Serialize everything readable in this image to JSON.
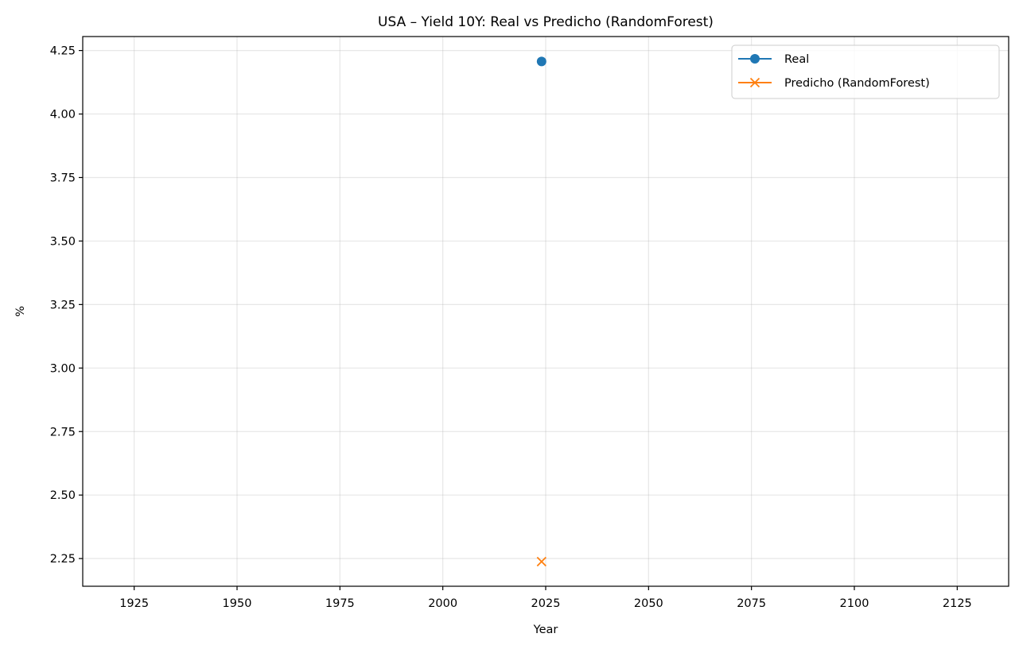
{
  "chart_data": {
    "type": "line",
    "title": "USA – Yield 10Y: Real vs Predicho (RandomForest)",
    "xlabel": "Year",
    "ylabel": "%",
    "xlim": [
      1912.5,
      2137.5
    ],
    "ylim": [
      2.141,
      4.305
    ],
    "x_ticks": [
      1925,
      1950,
      1975,
      2000,
      2025,
      2050,
      2075,
      2100,
      2125
    ],
    "x_tick_labels": [
      "1925",
      "1950",
      "1975",
      "2000",
      "2025",
      "2050",
      "2075",
      "2100",
      "2125"
    ],
    "y_ticks": [
      2.25,
      2.5,
      2.75,
      3.0,
      3.25,
      3.5,
      3.75,
      4.0,
      4.25
    ],
    "y_tick_labels": [
      "2.25",
      "2.50",
      "2.75",
      "3.00",
      "3.25",
      "3.50",
      "3.75",
      "4.00",
      "4.25"
    ],
    "grid": true,
    "legend_position": "top-right",
    "series": [
      {
        "name": "Real",
        "marker": "circle",
        "color": "#1f77b4",
        "x": [
          2024
        ],
        "y": [
          4.207
        ]
      },
      {
        "name": "Predicho (RandomForest)",
        "marker": "x",
        "color": "#ff7f0e",
        "x": [
          2024
        ],
        "y": [
          2.238
        ]
      }
    ]
  }
}
